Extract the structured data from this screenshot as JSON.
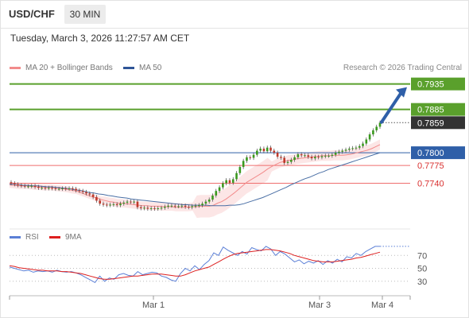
{
  "header": {
    "pair": "USD/CHF",
    "timeframe": "30 MIN",
    "timestamp": "Tuesday, March 3, 2026 11:27:57 AM CET"
  },
  "legend": {
    "bollinger": "MA 20 + Bollinger Bands",
    "ma50": "MA 50",
    "rsi": "RSI",
    "rsi_ma": "9MA",
    "copyright": "Research © 2026 Trading Central"
  },
  "colors": {
    "up": "#3a9a1e",
    "down": "#c0392b",
    "resistance": "#5aa02c",
    "support": "#ef6e6e",
    "pivot": "#2f5fa8",
    "bollinger": "#f28b8b",
    "ma50": "#4a6fa5",
    "rsi": "#5b7fd6",
    "rsi_ma": "#dd1f1f"
  },
  "chart_data": [
    {
      "type": "candlestick",
      "ylim": [
        0.7655,
        0.795
      ],
      "x_ticks": [
        "Mar 1",
        "Mar 3",
        "Mar 4"
      ],
      "levels": [
        {
          "label": "0.7935",
          "value": 0.7935,
          "kind": "resistance"
        },
        {
          "label": "0.7885",
          "value": 0.7885,
          "kind": "resistance"
        },
        {
          "label": "0.7859",
          "value": 0.7859,
          "kind": "last"
        },
        {
          "label": "0.7800",
          "value": 0.78,
          "kind": "pivot"
        },
        {
          "label": "0.7775",
          "value": 0.7775,
          "kind": "support"
        },
        {
          "label": "0.7740",
          "value": 0.774,
          "kind": "support"
        }
      ],
      "close": [
        0.774,
        0.7738,
        0.7736,
        0.7735,
        0.7734,
        0.7734,
        0.7735,
        0.7733,
        0.7731,
        0.7731,
        0.773,
        0.7731,
        0.773,
        0.7729,
        0.7729,
        0.773,
        0.7729,
        0.773,
        0.7729,
        0.7726,
        0.7725,
        0.7723,
        0.772,
        0.7718,
        0.7713,
        0.7706,
        0.77,
        0.7698,
        0.7697,
        0.7698,
        0.7699,
        0.7697,
        0.77,
        0.7702,
        0.7704,
        0.7703,
        0.7704,
        0.7693,
        0.7691,
        0.7692,
        0.769,
        0.7691,
        0.769,
        0.7691,
        0.7692,
        0.7694,
        0.7696,
        0.7696,
        0.7695,
        0.7695,
        0.7696,
        0.7694,
        0.7693,
        0.7695,
        0.7696,
        0.7697,
        0.77,
        0.7704,
        0.7708,
        0.7716,
        0.7725,
        0.7732,
        0.774,
        0.7746,
        0.7741,
        0.7748,
        0.776,
        0.7772,
        0.7784,
        0.7791,
        0.779,
        0.7796,
        0.7804,
        0.7808,
        0.7803,
        0.781,
        0.7804,
        0.78,
        0.7792,
        0.779,
        0.778,
        0.7782,
        0.7786,
        0.7791,
        0.7797,
        0.7795,
        0.7795,
        0.7792,
        0.7789,
        0.7792,
        0.7791,
        0.7793,
        0.7794,
        0.7794,
        0.7796,
        0.78,
        0.7802,
        0.7804,
        0.7806,
        0.7808,
        0.7809,
        0.781,
        0.7813,
        0.7818,
        0.7826,
        0.7836,
        0.7844,
        0.7851,
        0.7859
      ],
      "ma20": [
        0.7737,
        0.7736,
        0.7735,
        0.7735,
        0.7735,
        0.7734,
        0.7733,
        0.7733,
        0.7732,
        0.7732,
        0.7732,
        0.7731,
        0.773,
        0.7729,
        0.7728,
        0.7726,
        0.7725,
        0.7722,
        0.7719,
        0.7716,
        0.7713,
        0.7711,
        0.7708,
        0.7706,
        0.7704,
        0.7703,
        0.7701,
        0.7701,
        0.77,
        0.7699,
        0.7698,
        0.7697,
        0.7696,
        0.7696,
        0.7695,
        0.7695,
        0.7695,
        0.7694,
        0.7694,
        0.7694,
        0.7693,
        0.7693,
        0.7693,
        0.7693,
        0.7694,
        0.7694,
        0.7695,
        0.7695,
        0.7695,
        0.7697,
        0.7701,
        0.7704,
        0.7709,
        0.7715,
        0.7721,
        0.7728,
        0.7735,
        0.7742,
        0.7747,
        0.7752,
        0.7757,
        0.7762,
        0.7768,
        0.7773,
        0.7777,
        0.7781,
        0.7783,
        0.7785,
        0.7786,
        0.7788,
        0.7789,
        0.779,
        0.7791,
        0.7792,
        0.7793,
        0.7794,
        0.7794,
        0.7794,
        0.7795,
        0.7795,
        0.7795,
        0.7796,
        0.7797,
        0.7799,
        0.7801,
        0.7803,
        0.7805,
        0.7808,
        0.7812,
        0.7816
      ],
      "ma50": [
        0.7738,
        0.7738,
        0.7737,
        0.7736,
        0.7736,
        0.7735,
        0.7735,
        0.7734,
        0.7733,
        0.7733,
        0.7732,
        0.7731,
        0.773,
        0.7729,
        0.7727,
        0.7726,
        0.7724,
        0.7722,
        0.7721,
        0.7719,
        0.7718,
        0.7716,
        0.7715,
        0.7713,
        0.7712,
        0.7711,
        0.7709,
        0.7708,
        0.7707,
        0.7706,
        0.7705,
        0.7704,
        0.7703,
        0.7702,
        0.7701,
        0.77,
        0.7699,
        0.7698,
        0.7698,
        0.7697,
        0.7697,
        0.7697,
        0.7697,
        0.7696,
        0.7696,
        0.7696,
        0.7696,
        0.7697,
        0.7697,
        0.7698,
        0.77,
        0.7703,
        0.7706,
        0.7709,
        0.7712,
        0.7716,
        0.772,
        0.7724,
        0.7728,
        0.7732,
        0.7737,
        0.7741,
        0.7745,
        0.7749,
        0.7752,
        0.7756,
        0.776,
        0.7763,
        0.7767,
        0.777,
        0.7773,
        0.7776,
        0.7779,
        0.7782,
        0.7785,
        0.7788,
        0.7791,
        0.7794,
        0.7797,
        0.78
      ],
      "projection": {
        "from": 0.786,
        "to": 0.7935
      }
    },
    {
      "type": "line",
      "ylim": [
        10,
        90
      ],
      "y_ticks": [
        "70",
        "50",
        "30"
      ],
      "series": [
        {
          "name": "RSI",
          "values": [
            52,
            50,
            48,
            46,
            47,
            44,
            46,
            45,
            46,
            44,
            47,
            45,
            44,
            45,
            43,
            40,
            36,
            32,
            28,
            38,
            30,
            35,
            33,
            40,
            42,
            39,
            38,
            45,
            40,
            42,
            44,
            43,
            38,
            36,
            32,
            30,
            42,
            50,
            46,
            54,
            48,
            56,
            62,
            74,
            70,
            83,
            78,
            74,
            70,
            76,
            72,
            82,
            79,
            77,
            84,
            80,
            70,
            76,
            72,
            66,
            60,
            63,
            57,
            61,
            58,
            62,
            56,
            62,
            58,
            64,
            60,
            68,
            66,
            73,
            70,
            76,
            80,
            84,
            84
          ]
        },
        {
          "name": "9MA",
          "values": [
            54,
            53,
            51,
            50,
            49,
            48,
            47,
            47,
            46,
            46,
            46,
            45,
            45,
            44,
            43,
            42,
            40,
            38,
            36,
            34,
            33,
            33,
            34,
            35,
            36,
            37,
            38,
            38,
            39,
            40,
            41,
            41,
            41,
            40,
            39,
            38,
            38,
            40,
            43,
            46,
            48,
            50,
            52,
            56,
            60,
            64,
            68,
            71,
            73,
            74,
            75,
            76,
            77,
            78,
            79,
            79,
            78,
            77,
            75,
            73,
            70,
            68,
            66,
            64,
            62,
            61,
            60,
            60,
            60,
            61,
            62,
            63,
            64,
            66,
            67,
            69,
            71,
            73,
            75
          ]
        }
      ]
    }
  ]
}
